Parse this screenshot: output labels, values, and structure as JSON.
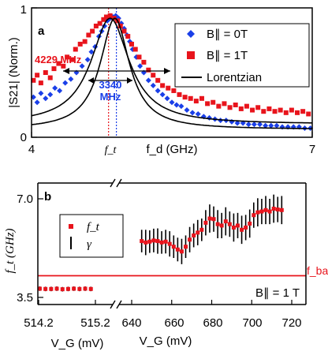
{
  "chart_data": [
    {
      "panel": "a",
      "type": "scatter",
      "xlabel": "f_d (GHz)",
      "ylabel": "|S21| (Norm.)",
      "xlim": [
        4,
        7
      ],
      "ylim": [
        0,
        1
      ],
      "x_ticks": [
        "4",
        "7"
      ],
      "y_ticks": [
        "0",
        "1"
      ],
      "x_markers": [
        "f_t",
        "f_t"
      ],
      "legend": [
        "B∥ = 0T",
        "B∥ = 1T",
        "Lorentzian"
      ],
      "legend_position": "top-right",
      "annotations": [
        {
          "text": "4229 MHz",
          "y_level": 0.68
        },
        {
          "text": "3340 MHz",
          "y_level": 0.52
        }
      ],
      "series": [
        {
          "name": "B∥ = 0T",
          "color": "#1a3fe8",
          "marker": "diamond",
          "lorentzian": {
            "center": 4.89,
            "width": 0.19,
            "baseline": 0.06,
            "amplitude": 0.86
          },
          "points": [
            [
              4.02,
              0.31
            ],
            [
              4.06,
              0.27
            ],
            [
              4.1,
              0.34
            ],
            [
              4.15,
              0.3
            ],
            [
              4.2,
              0.33
            ],
            [
              4.25,
              0.38
            ],
            [
              4.3,
              0.36
            ],
            [
              4.36,
              0.42
            ],
            [
              4.42,
              0.45
            ],
            [
              4.48,
              0.5
            ],
            [
              4.54,
              0.55
            ],
            [
              4.6,
              0.6
            ],
            [
              4.64,
              0.66
            ],
            [
              4.68,
              0.7
            ],
            [
              4.72,
              0.78
            ],
            [
              4.75,
              0.82
            ],
            [
              4.78,
              0.86
            ],
            [
              4.81,
              0.9
            ],
            [
              4.84,
              0.92
            ],
            [
              4.87,
              0.93
            ],
            [
              4.9,
              0.94
            ],
            [
              4.93,
              0.92
            ],
            [
              4.96,
              0.88
            ],
            [
              4.99,
              0.84
            ],
            [
              5.02,
              0.79
            ],
            [
              5.05,
              0.74
            ],
            [
              5.08,
              0.68
            ],
            [
              5.12,
              0.62
            ],
            [
              5.16,
              0.55
            ],
            [
              5.2,
              0.5
            ],
            [
              5.25,
              0.44
            ],
            [
              5.3,
              0.4
            ],
            [
              5.35,
              0.36
            ],
            [
              5.4,
              0.33
            ],
            [
              5.45,
              0.3
            ],
            [
              5.5,
              0.27
            ],
            [
              5.55,
              0.25
            ],
            [
              5.6,
              0.24
            ],
            [
              5.66,
              0.21
            ],
            [
              5.72,
              0.19
            ],
            [
              5.78,
              0.18
            ],
            [
              5.84,
              0.16
            ],
            [
              5.9,
              0.15
            ],
            [
              5.96,
              0.14
            ],
            [
              6.02,
              0.13
            ],
            [
              6.08,
              0.13
            ],
            [
              6.14,
              0.12
            ],
            [
              6.2,
              0.11
            ],
            [
              6.26,
              0.11
            ],
            [
              6.32,
              0.1
            ],
            [
              6.38,
              0.1
            ],
            [
              6.44,
              0.1
            ],
            [
              6.5,
              0.09
            ],
            [
              6.56,
              0.09
            ],
            [
              6.62,
              0.09
            ],
            [
              6.68,
              0.08
            ],
            [
              6.74,
              0.08
            ],
            [
              6.8,
              0.08
            ],
            [
              6.86,
              0.08
            ],
            [
              6.92,
              0.07
            ],
            [
              6.98,
              0.07
            ]
          ]
        },
        {
          "name": "B∥ = 1T",
          "color": "#e8141c",
          "marker": "square",
          "lorentzian": {
            "center": 4.84,
            "width": 0.25,
            "baseline": 0.1,
            "amplitude": 0.82
          },
          "points": [
            [
              4.02,
              0.44
            ],
            [
              4.06,
              0.48
            ],
            [
              4.1,
              0.42
            ],
            [
              4.15,
              0.5
            ],
            [
              4.2,
              0.46
            ],
            [
              4.24,
              0.53
            ],
            [
              4.29,
              0.57
            ],
            [
              4.34,
              0.55
            ],
            [
              4.38,
              0.62
            ],
            [
              4.43,
              0.6
            ],
            [
              4.47,
              0.68
            ],
            [
              4.52,
              0.72
            ],
            [
              4.57,
              0.74
            ],
            [
              4.61,
              0.79
            ],
            [
              4.65,
              0.82
            ],
            [
              4.69,
              0.86
            ],
            [
              4.73,
              0.88
            ],
            [
              4.77,
              0.91
            ],
            [
              4.8,
              0.93
            ],
            [
              4.84,
              0.94
            ],
            [
              4.88,
              0.92
            ],
            [
              4.92,
              0.9
            ],
            [
              4.95,
              0.86
            ],
            [
              4.99,
              0.82
            ],
            [
              5.03,
              0.78
            ],
            [
              5.07,
              0.72
            ],
            [
              5.11,
              0.68
            ],
            [
              5.15,
              0.62
            ],
            [
              5.2,
              0.58
            ],
            [
              5.25,
              0.52
            ],
            [
              5.3,
              0.48
            ],
            [
              5.35,
              0.44
            ],
            [
              5.4,
              0.4
            ],
            [
              5.46,
              0.38
            ],
            [
              5.52,
              0.36
            ],
            [
              5.58,
              0.33
            ],
            [
              5.64,
              0.31
            ],
            [
              5.7,
              0.3
            ],
            [
              5.76,
              0.28
            ],
            [
              5.82,
              0.3
            ],
            [
              5.88,
              0.26
            ],
            [
              5.94,
              0.27
            ],
            [
              6.0,
              0.24
            ],
            [
              6.06,
              0.26
            ],
            [
              6.12,
              0.23
            ],
            [
              6.18,
              0.25
            ],
            [
              6.24,
              0.22
            ],
            [
              6.3,
              0.24
            ],
            [
              6.36,
              0.21
            ],
            [
              6.42,
              0.23
            ],
            [
              6.48,
              0.2
            ],
            [
              6.54,
              0.22
            ],
            [
              6.6,
              0.2
            ],
            [
              6.66,
              0.21
            ],
            [
              6.72,
              0.19
            ],
            [
              6.78,
              0.21
            ],
            [
              6.84,
              0.19
            ],
            [
              6.9,
              0.2
            ],
            [
              6.96,
              0.18
            ]
          ]
        }
      ]
    },
    {
      "panel": "b",
      "type": "scatter",
      "xlabel_left": "V_G (mV)",
      "xlabel_right": "V_G (mV)",
      "ylabel": "f_t (GHz)",
      "ylim": [
        3.5,
        7.0
      ],
      "y_ticks": [
        "3.5",
        "7.0"
      ],
      "left_xlim": [
        514.2,
        515.4
      ],
      "left_ticks": [
        "514.2",
        "515.2"
      ],
      "right_xlim": [
        640,
        720
      ],
      "right_ticks": [
        "640",
        "660",
        "680",
        "700",
        "720"
      ],
      "legend": [
        "f_t",
        "γ"
      ],
      "legend_position": "upper-left",
      "f_bare": {
        "value": 4.27,
        "label": "f_bare",
        "color": "#e8141c"
      },
      "field_label": "B∥ = 1 T",
      "left_points": [
        [
          514.22,
          3.81
        ],
        [
          514.32,
          3.8
        ],
        [
          514.42,
          3.8
        ],
        [
          514.52,
          3.81
        ],
        [
          514.62,
          3.79
        ],
        [
          514.72,
          3.8
        ],
        [
          514.82,
          3.81
        ],
        [
          514.92,
          3.8
        ],
        [
          515.02,
          3.81
        ],
        [
          515.12,
          3.8
        ]
      ],
      "left_err": 0.08,
      "right_points": [
        [
          645,
          5.5,
          0.4
        ],
        [
          647,
          5.45,
          0.45
        ],
        [
          649,
          5.48,
          0.4
        ],
        [
          651,
          5.52,
          0.42
        ],
        [
          653,
          5.5,
          0.45
        ],
        [
          655,
          5.45,
          0.4
        ],
        [
          657,
          5.48,
          0.42
        ],
        [
          659,
          5.4,
          0.45
        ],
        [
          661,
          5.3,
          0.4
        ],
        [
          663,
          5.2,
          0.42
        ],
        [
          665,
          5.13,
          0.45
        ],
        [
          667,
          5.3,
          0.4
        ],
        [
          669,
          5.55,
          0.45
        ],
        [
          671,
          5.7,
          0.42
        ],
        [
          673,
          5.8,
          0.45
        ],
        [
          675,
          5.9,
          0.4
        ],
        [
          677,
          6.15,
          0.45
        ],
        [
          679,
          6.3,
          0.5
        ],
        [
          681,
          6.28,
          0.45
        ],
        [
          683,
          6.1,
          0.5
        ],
        [
          685,
          6.05,
          0.45
        ],
        [
          687,
          6.2,
          0.5
        ],
        [
          689,
          6.1,
          0.45
        ],
        [
          691,
          5.98,
          0.5
        ],
        [
          693,
          6.05,
          0.45
        ],
        [
          695,
          5.9,
          0.5
        ],
        [
          697,
          5.98,
          0.45
        ],
        [
          699,
          6.12,
          0.5
        ],
        [
          701,
          6.42,
          0.45
        ],
        [
          703,
          6.52,
          0.5
        ],
        [
          705,
          6.55,
          0.45
        ],
        [
          707,
          6.6,
          0.5
        ],
        [
          709,
          6.55,
          0.45
        ],
        [
          711,
          6.65,
          0.5
        ],
        [
          713,
          6.62,
          0.45
        ],
        [
          715,
          6.6,
          0.5
        ]
      ]
    }
  ],
  "labels": {
    "panel_a": "a",
    "panel_b": "b",
    "axis_a_x": "f_d (GHz)",
    "axis_a_y": "|S21| (Norm.)",
    "x_tick_a_left": "4",
    "x_tick_a_right": "7",
    "y_tick_a_top": "1",
    "y_tick_a_bottom": "0",
    "ft_marker": "f_t",
    "ann_4229": "4229 MHz",
    "ann_3340_a": "3340",
    "ann_3340_b": "MHz",
    "leg_a_0T": "B∥ = 0T",
    "leg_a_1T": "B∥ = 1T",
    "leg_a_lor": "Lorentzian",
    "axis_b_y": "f_t (GHz)",
    "y_tick_b_top": "7.0",
    "y_tick_b_bottom": "3.5",
    "leg_b_ft": "f_t",
    "leg_b_gamma": "γ",
    "fbare": "f_bare",
    "field": "B∥ = 1 T",
    "xlab_left": "V_G (mV)",
    "xlab_right": "V_G (mV)",
    "tick_514": "514.2",
    "tick_515": "515.2",
    "tick_640": "640",
    "tick_660": "660",
    "tick_680": "680",
    "tick_700": "700",
    "tick_720": "720"
  }
}
